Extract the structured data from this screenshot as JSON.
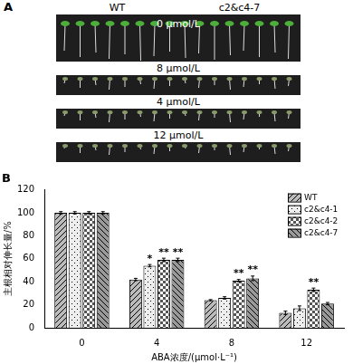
{
  "panel_a": {
    "label": "A",
    "columns": [
      "WT",
      "c2&c4-7"
    ],
    "rows": [
      "0 μmol/L",
      "8 μmol/L",
      "4 μmol/L",
      "12 μmol/L"
    ]
  },
  "chart_data": {
    "type": "bar",
    "title": "B",
    "x_label": "ABA浓度/(μmol·L⁻¹)",
    "y_label": "主根相对伸长量/%",
    "categories": [
      "0",
      "4",
      "8",
      "12"
    ],
    "series": [
      {
        "name": "WT",
        "color": "#bbbbbb",
        "values": [
          100,
          42,
          24,
          13
        ],
        "errors": [
          1,
          1,
          0.5,
          1.5
        ],
        "significance": [
          null,
          null,
          null,
          null
        ]
      },
      {
        "name": "c2&c4-1",
        "color": "#eeeeee",
        "values": [
          100,
          54,
          26,
          17
        ],
        "errors": [
          1,
          1,
          1,
          2
        ],
        "significance": [
          null,
          "*",
          null,
          null
        ]
      },
      {
        "name": "c2&c4-2",
        "color": "#555555",
        "values": [
          100,
          59,
          41,
          33
        ],
        "errors": [
          1,
          1.5,
          1,
          1.5
        ],
        "significance": [
          null,
          "**",
          "**",
          "**"
        ]
      },
      {
        "name": "c2&c4-7",
        "color": "#999999",
        "values": [
          100,
          59,
          43,
          21
        ],
        "errors": [
          1,
          1.5,
          2,
          1
        ],
        "significance": [
          null,
          "**",
          "**",
          null
        ]
      }
    ],
    "ylim": [
      0,
      120
    ],
    "yticks": [
      0,
      20,
      40,
      60,
      80,
      100,
      120
    ],
    "legend": "upper right",
    "grid": false
  }
}
